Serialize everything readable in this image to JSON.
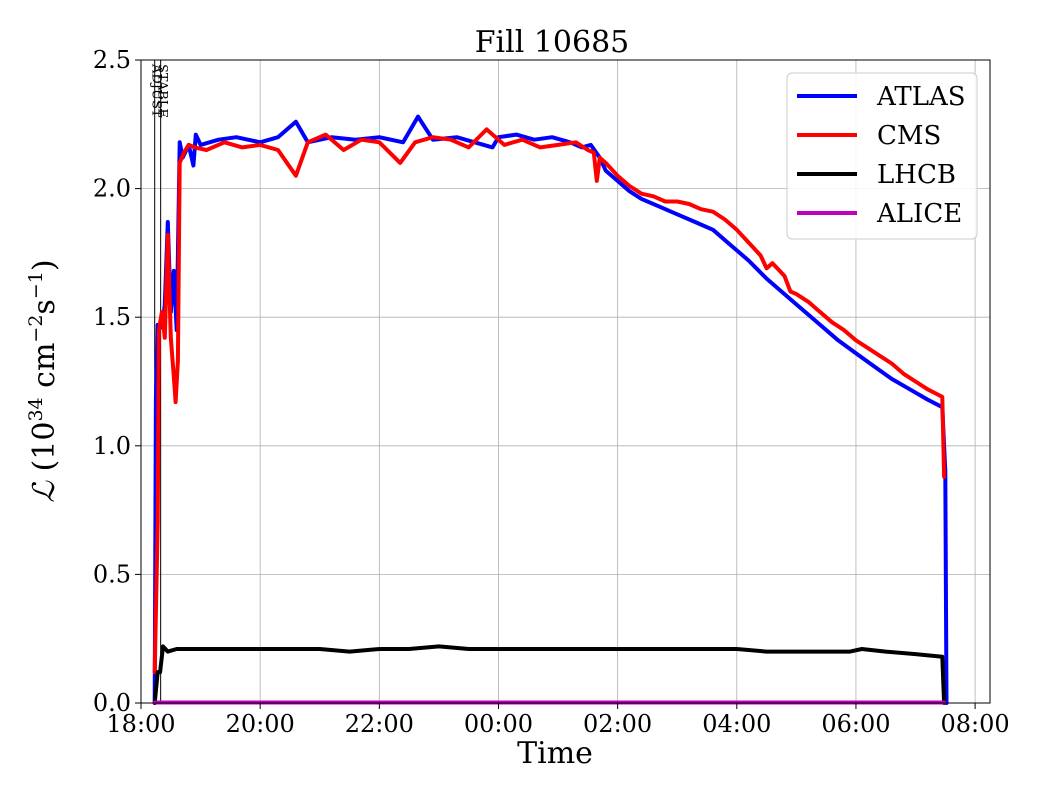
{
  "chart_data": {
    "type": "line",
    "title": "Fill 10685",
    "xlabel": "Time",
    "ylabel_parts": {
      "symbol": "ℒ",
      "open": " (10",
      "exp1": "34",
      "mid": " cm",
      "exp2": "−2",
      "s": "s",
      "exp3": "−1",
      "close": ")"
    },
    "x_unit": "hours",
    "xlim": [
      18.0,
      32.25
    ],
    "ylim": [
      0,
      2.5
    ],
    "x_ticks": [
      {
        "value": 18,
        "label": "18:00"
      },
      {
        "value": 20,
        "label": "20:00"
      },
      {
        "value": 22,
        "label": "22:00"
      },
      {
        "value": 24,
        "label": "00:00"
      },
      {
        "value": 26,
        "label": "02:00"
      },
      {
        "value": 28,
        "label": "04:00"
      },
      {
        "value": 30,
        "label": "06:00"
      },
      {
        "value": 32,
        "label": "08:00"
      }
    ],
    "y_ticks": [
      {
        "value": 0.0,
        "label": "0.0"
      },
      {
        "value": 0.5,
        "label": "0.5"
      },
      {
        "value": 1.0,
        "label": "1.0"
      },
      {
        "value": 1.5,
        "label": "1.5"
      },
      {
        "value": 2.0,
        "label": "2.0"
      },
      {
        "value": 2.5,
        "label": "2.5"
      }
    ],
    "grid": true,
    "legend_position": "top-right",
    "markers": [
      {
        "x": 18.23,
        "label": "ADJUST"
      },
      {
        "x": 18.33,
        "label": "STABLE"
      }
    ],
    "series": [
      {
        "name": "ATLAS",
        "color": "#0000ff",
        "points": [
          [
            18.23,
            0.0
          ],
          [
            18.25,
            1.18
          ],
          [
            18.28,
            1.47
          ],
          [
            18.32,
            1.47
          ],
          [
            18.36,
            1.46
          ],
          [
            18.4,
            1.55
          ],
          [
            18.45,
            1.87
          ],
          [
            18.5,
            1.52
          ],
          [
            18.55,
            1.68
          ],
          [
            18.6,
            1.45
          ],
          [
            18.65,
            2.18
          ],
          [
            18.7,
            2.12
          ],
          [
            18.8,
            2.17
          ],
          [
            18.88,
            2.09
          ],
          [
            18.92,
            2.21
          ],
          [
            19.0,
            2.17
          ],
          [
            19.3,
            2.19
          ],
          [
            19.6,
            2.2
          ],
          [
            20.0,
            2.18
          ],
          [
            20.3,
            2.2
          ],
          [
            20.6,
            2.26
          ],
          [
            20.8,
            2.18
          ],
          [
            21.2,
            2.2
          ],
          [
            21.6,
            2.19
          ],
          [
            22.0,
            2.2
          ],
          [
            22.4,
            2.18
          ],
          [
            22.65,
            2.28
          ],
          [
            22.9,
            2.19
          ],
          [
            23.3,
            2.2
          ],
          [
            23.6,
            2.18
          ],
          [
            23.9,
            2.16
          ],
          [
            24.0,
            2.2
          ],
          [
            24.3,
            2.21
          ],
          [
            24.6,
            2.19
          ],
          [
            24.9,
            2.2
          ],
          [
            25.2,
            2.18
          ],
          [
            25.4,
            2.16
          ],
          [
            25.55,
            2.17
          ],
          [
            25.7,
            2.12
          ],
          [
            25.8,
            2.07
          ],
          [
            26.0,
            2.03
          ],
          [
            26.2,
            1.99
          ],
          [
            26.4,
            1.96
          ],
          [
            26.7,
            1.93
          ],
          [
            27.0,
            1.9
          ],
          [
            27.3,
            1.87
          ],
          [
            27.6,
            1.84
          ],
          [
            27.9,
            1.78
          ],
          [
            28.2,
            1.72
          ],
          [
            28.5,
            1.65
          ],
          [
            28.8,
            1.59
          ],
          [
            29.1,
            1.53
          ],
          [
            29.4,
            1.47
          ],
          [
            29.7,
            1.41
          ],
          [
            30.0,
            1.36
          ],
          [
            30.3,
            1.31
          ],
          [
            30.6,
            1.26
          ],
          [
            30.9,
            1.22
          ],
          [
            31.2,
            1.18
          ],
          [
            31.45,
            1.15
          ],
          [
            31.5,
            0.9
          ],
          [
            31.52,
            0.0
          ]
        ]
      },
      {
        "name": "CMS",
        "color": "#ff0000",
        "points": [
          [
            18.23,
            0.12
          ],
          [
            18.28,
            0.7
          ],
          [
            18.3,
            1.45
          ],
          [
            18.35,
            1.52
          ],
          [
            18.4,
            1.42
          ],
          [
            18.45,
            1.82
          ],
          [
            18.5,
            1.42
          ],
          [
            18.55,
            1.27
          ],
          [
            18.58,
            1.17
          ],
          [
            18.62,
            1.33
          ],
          [
            18.65,
            2.1
          ],
          [
            18.72,
            2.14
          ],
          [
            18.8,
            2.17
          ],
          [
            18.9,
            2.16
          ],
          [
            19.1,
            2.15
          ],
          [
            19.4,
            2.18
          ],
          [
            19.7,
            2.16
          ],
          [
            20.0,
            2.17
          ],
          [
            20.3,
            2.15
          ],
          [
            20.6,
            2.05
          ],
          [
            20.8,
            2.18
          ],
          [
            21.1,
            2.21
          ],
          [
            21.4,
            2.15
          ],
          [
            21.7,
            2.19
          ],
          [
            22.0,
            2.18
          ],
          [
            22.35,
            2.1
          ],
          [
            22.6,
            2.18
          ],
          [
            22.9,
            2.2
          ],
          [
            23.2,
            2.19
          ],
          [
            23.5,
            2.16
          ],
          [
            23.8,
            2.23
          ],
          [
            24.1,
            2.17
          ],
          [
            24.4,
            2.19
          ],
          [
            24.7,
            2.16
          ],
          [
            25.0,
            2.17
          ],
          [
            25.3,
            2.18
          ],
          [
            25.5,
            2.15
          ],
          [
            25.6,
            2.14
          ],
          [
            25.65,
            2.03
          ],
          [
            25.7,
            2.12
          ],
          [
            25.8,
            2.1
          ],
          [
            26.0,
            2.05
          ],
          [
            26.2,
            2.01
          ],
          [
            26.4,
            1.98
          ],
          [
            26.6,
            1.97
          ],
          [
            26.8,
            1.95
          ],
          [
            27.0,
            1.95
          ],
          [
            27.2,
            1.94
          ],
          [
            27.4,
            1.92
          ],
          [
            27.6,
            1.91
          ],
          [
            27.8,
            1.88
          ],
          [
            28.0,
            1.84
          ],
          [
            28.2,
            1.79
          ],
          [
            28.4,
            1.74
          ],
          [
            28.5,
            1.69
          ],
          [
            28.6,
            1.71
          ],
          [
            28.8,
            1.66
          ],
          [
            28.9,
            1.6
          ],
          [
            29.0,
            1.59
          ],
          [
            29.2,
            1.56
          ],
          [
            29.4,
            1.52
          ],
          [
            29.6,
            1.48
          ],
          [
            29.8,
            1.45
          ],
          [
            30.0,
            1.41
          ],
          [
            30.2,
            1.38
          ],
          [
            30.4,
            1.35
          ],
          [
            30.6,
            1.32
          ],
          [
            30.8,
            1.28
          ],
          [
            31.0,
            1.25
          ],
          [
            31.2,
            1.22
          ],
          [
            31.45,
            1.19
          ],
          [
            31.48,
            0.88
          ]
        ]
      },
      {
        "name": "LHCB",
        "color": "#000000",
        "points": [
          [
            18.23,
            0.0
          ],
          [
            18.28,
            0.12
          ],
          [
            18.32,
            0.12
          ],
          [
            18.37,
            0.22
          ],
          [
            18.45,
            0.2
          ],
          [
            18.6,
            0.21
          ],
          [
            19.0,
            0.21
          ],
          [
            19.5,
            0.21
          ],
          [
            20.0,
            0.21
          ],
          [
            20.5,
            0.21
          ],
          [
            21.0,
            0.21
          ],
          [
            21.5,
            0.2
          ],
          [
            22.0,
            0.21
          ],
          [
            22.5,
            0.21
          ],
          [
            23.0,
            0.22
          ],
          [
            23.5,
            0.21
          ],
          [
            24.0,
            0.21
          ],
          [
            24.5,
            0.21
          ],
          [
            25.0,
            0.21
          ],
          [
            25.5,
            0.21
          ],
          [
            26.0,
            0.21
          ],
          [
            26.5,
            0.21
          ],
          [
            27.0,
            0.21
          ],
          [
            27.5,
            0.21
          ],
          [
            28.0,
            0.21
          ],
          [
            28.5,
            0.2
          ],
          [
            29.0,
            0.2
          ],
          [
            29.5,
            0.2
          ],
          [
            29.9,
            0.2
          ],
          [
            30.1,
            0.21
          ],
          [
            30.5,
            0.2
          ],
          [
            31.0,
            0.19
          ],
          [
            31.45,
            0.18
          ],
          [
            31.48,
            0.0
          ]
        ]
      },
      {
        "name": "ALICE",
        "color": "#bf00bf",
        "points": [
          [
            18.23,
            0.002
          ],
          [
            31.48,
            0.002
          ]
        ]
      }
    ]
  }
}
